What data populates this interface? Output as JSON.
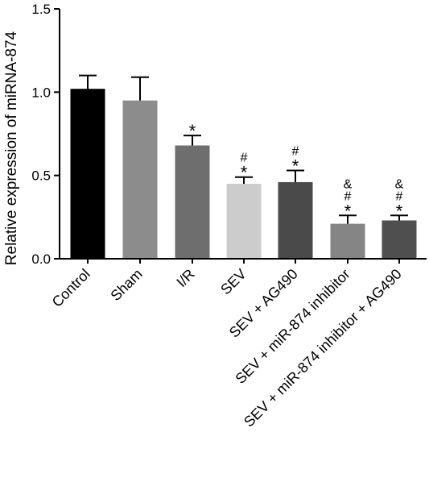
{
  "chart_data": {
    "type": "bar",
    "title": "",
    "xlabel": "",
    "ylabel": "Relative expression of miRNA-874",
    "ylim": [
      0,
      1.5
    ],
    "yticks": [
      "0.0",
      "0.5",
      "1.0",
      "1.5"
    ],
    "grid": false,
    "categories": [
      "Control",
      "Sham",
      "I/R",
      "SEV",
      "SEV + AG490",
      "SEV + miR-874 inhibitor",
      "SEV + miR-874 inhibitor + AG490"
    ],
    "values": [
      1.02,
      0.95,
      0.68,
      0.45,
      0.46,
      0.21,
      0.23
    ],
    "errors": [
      0.08,
      0.14,
      0.06,
      0.04,
      0.07,
      0.05,
      0.03
    ],
    "colors": [
      "#000000",
      "#8c8c8c",
      "#6e6e6e",
      "#cccccc",
      "#4a4a4a",
      "#858585",
      "#4f4f4f"
    ],
    "significance": [
      [],
      [],
      [
        "*"
      ],
      [
        "*",
        "#"
      ],
      [
        "*",
        "#"
      ],
      [
        "*",
        "#",
        "&"
      ],
      [
        "*",
        "#",
        "&"
      ]
    ]
  }
}
